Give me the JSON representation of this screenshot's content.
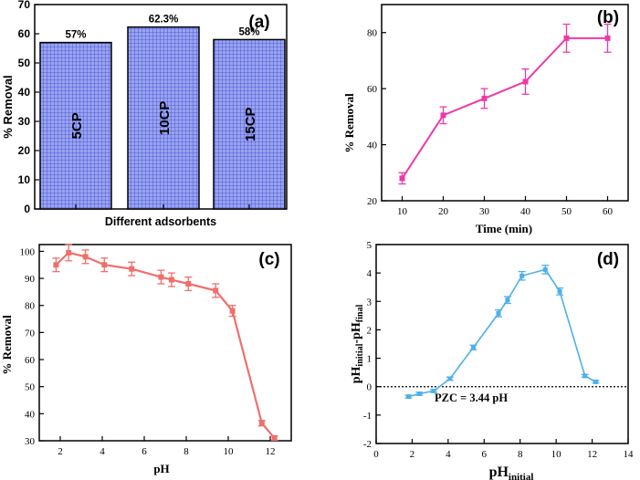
{
  "colors": {
    "a_fill": "#9aa4ee",
    "a_grid": "#3947d8",
    "b": "#ec3aa8",
    "c": "#ef6f6c",
    "d": "#4eb0e8",
    "axis": "#000000"
  },
  "chart_data": [
    {
      "type": "bar",
      "panel_label": "(a)",
      "title": "",
      "xlabel": "Different adsorbents",
      "ylabel": "% Removal",
      "ylim": [
        0,
        70
      ],
      "yticks": [
        "0",
        "10",
        "20",
        "30",
        "40",
        "50",
        "60",
        "70"
      ],
      "categories": [
        "5CP",
        "10CP",
        "15CP"
      ],
      "values": [
        57,
        62.3,
        58
      ],
      "value_labels": [
        "57%",
        "62.3%",
        "58%"
      ]
    },
    {
      "type": "line",
      "panel_label": "(b)",
      "xlabel": "Time (min)",
      "ylabel": "% Removal",
      "xlim": [
        5,
        65
      ],
      "ylim": [
        20,
        90
      ],
      "xticks": [
        "10",
        "20",
        "30",
        "40",
        "50",
        "60"
      ],
      "yticks": [
        "20",
        "40",
        "60",
        "80"
      ],
      "x": [
        10,
        20,
        30,
        40,
        50,
        60
      ],
      "y": [
        28,
        50.5,
        56.5,
        62.5,
        78,
        78
      ],
      "err": [
        2,
        3,
        3.5,
        4.5,
        5,
        5
      ]
    },
    {
      "type": "line",
      "panel_label": "(c)",
      "xlabel": "pH",
      "ylabel": "% Removal",
      "xlim": [
        1,
        13
      ],
      "ylim": [
        30,
        102.5
      ],
      "xticks": [
        "2",
        "4",
        "6",
        "8",
        "10",
        "12"
      ],
      "yticks": [
        "30",
        "40",
        "50",
        "60",
        "70",
        "80",
        "90",
        "100"
      ],
      "x": [
        1.8,
        2.4,
        3.2,
        4.1,
        5.4,
        6.8,
        7.3,
        8.1,
        9.4,
        10.2,
        11.6,
        12.2
      ],
      "y": [
        95,
        99.5,
        98,
        95,
        93.5,
        90.5,
        89.5,
        88,
        85.5,
        78,
        36.5,
        31
      ],
      "err": [
        2.5,
        3,
        2.5,
        2.5,
        2.5,
        2.5,
        2.5,
        2.5,
        2.5,
        2,
        1,
        0.8
      ]
    },
    {
      "type": "line",
      "panel_label": "(d)",
      "xlabel": "pH",
      "xlabel_sub": "initial",
      "ylabel_parts": [
        "pH",
        "initial",
        "-pH",
        "final"
      ],
      "xlim": [
        0,
        14
      ],
      "ylim": [
        -2,
        5
      ],
      "xticks": [
        "0",
        "2",
        "4",
        "6",
        "8",
        "10",
        "12",
        "14"
      ],
      "yticks": [
        "-2",
        "-1",
        "0",
        "1",
        "2",
        "3",
        "4",
        "5"
      ],
      "x": [
        1.8,
        2.4,
        3.2,
        4.1,
        5.4,
        6.8,
        7.3,
        8.1,
        9.4,
        10.2,
        11.6,
        12.2
      ],
      "y": [
        -0.35,
        -0.25,
        -0.15,
        0.28,
        1.38,
        2.58,
        3.05,
        3.9,
        4.12,
        3.35,
        0.38,
        0.17
      ],
      "err": [
        0.05,
        0.05,
        0.05,
        0.06,
        0.08,
        0.12,
        0.12,
        0.15,
        0.15,
        0.12,
        0.05,
        0.04
      ],
      "zero_line": "dotted",
      "annotation": "PZC = 3.44 pH"
    }
  ]
}
